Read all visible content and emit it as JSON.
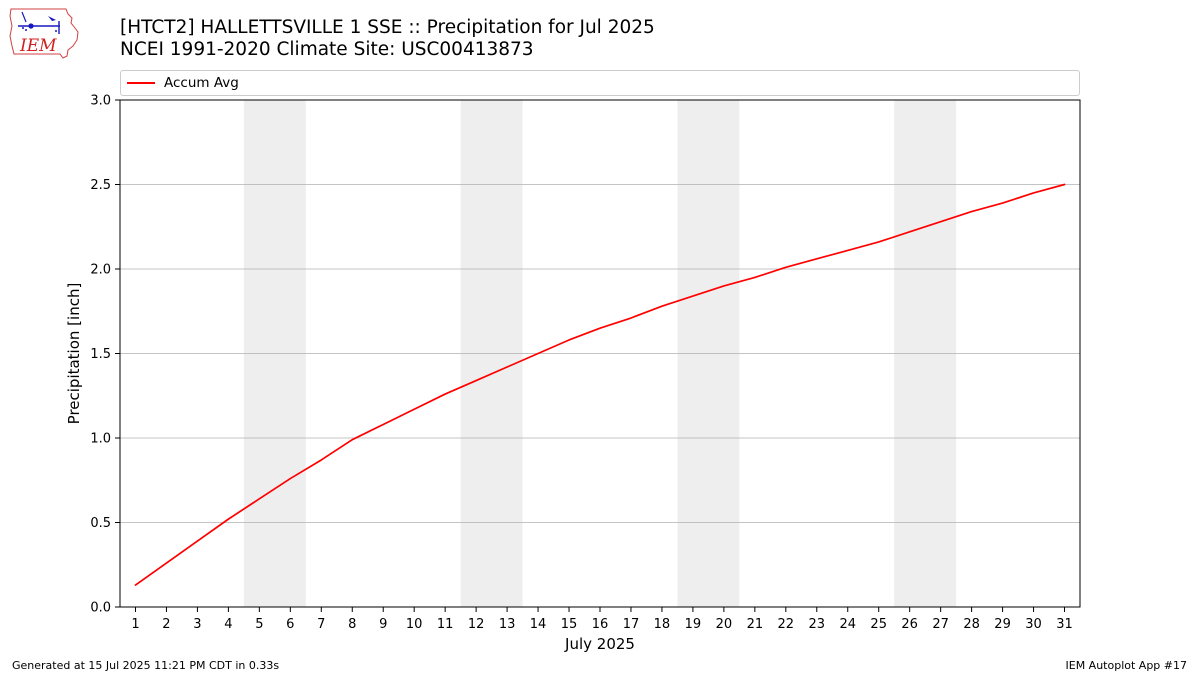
{
  "header": {
    "title_line1": "[HTCT2] HALLETTSVILLE 1 SSE :: Precipitation for Jul 2025",
    "title_line2": "NCEI 1991-2020 Climate Site: USC00413873",
    "logo_text": "IEM"
  },
  "footer": {
    "generated": "Generated at 15 Jul 2025 11:21 PM CDT in 0.33s",
    "app": "IEM Autoplot App #17"
  },
  "chart_data": {
    "type": "line",
    "xlabel": "July 2025",
    "ylabel": "Precipitation [inch]",
    "ylim": [
      0,
      3.0
    ],
    "xlim": [
      0.5,
      31.5
    ],
    "grid": "horizontal",
    "legend_placement": "top",
    "x": [
      1,
      2,
      3,
      4,
      5,
      6,
      7,
      8,
      9,
      10,
      11,
      12,
      13,
      14,
      15,
      16,
      17,
      18,
      19,
      20,
      21,
      22,
      23,
      24,
      25,
      26,
      27,
      28,
      29,
      30,
      31
    ],
    "x_tick_labels": [
      "1",
      "2",
      "3",
      "4",
      "5",
      "6",
      "7",
      "8",
      "9",
      "10",
      "11",
      "12",
      "13",
      "14",
      "15",
      "16",
      "17",
      "18",
      "19",
      "20",
      "21",
      "22",
      "23",
      "24",
      "25",
      "26",
      "27",
      "28",
      "29",
      "30",
      "31"
    ],
    "y_ticks": [
      0.0,
      0.5,
      1.0,
      1.5,
      2.0,
      2.5,
      3.0
    ],
    "y_tick_labels": [
      "0.0",
      "0.5",
      "1.0",
      "1.5",
      "2.0",
      "2.5",
      "3.0"
    ],
    "weekend_bands": [
      [
        5,
        6
      ],
      [
        12,
        13
      ],
      [
        19,
        20
      ],
      [
        26,
        27
      ]
    ],
    "series": [
      {
        "name": "Accum Avg",
        "color": "#ff0000",
        "values": [
          0.13,
          0.26,
          0.39,
          0.52,
          0.64,
          0.76,
          0.87,
          0.99,
          1.08,
          1.17,
          1.26,
          1.34,
          1.42,
          1.5,
          1.58,
          1.65,
          1.71,
          1.78,
          1.84,
          1.9,
          1.95,
          2.01,
          2.06,
          2.11,
          2.16,
          2.22,
          2.28,
          2.34,
          2.39,
          2.45,
          2.5
        ]
      }
    ],
    "colors": {
      "line": "#ff0000",
      "band": "#eeeeee",
      "grid": "#b0b0b0",
      "axes": "#000000"
    }
  }
}
